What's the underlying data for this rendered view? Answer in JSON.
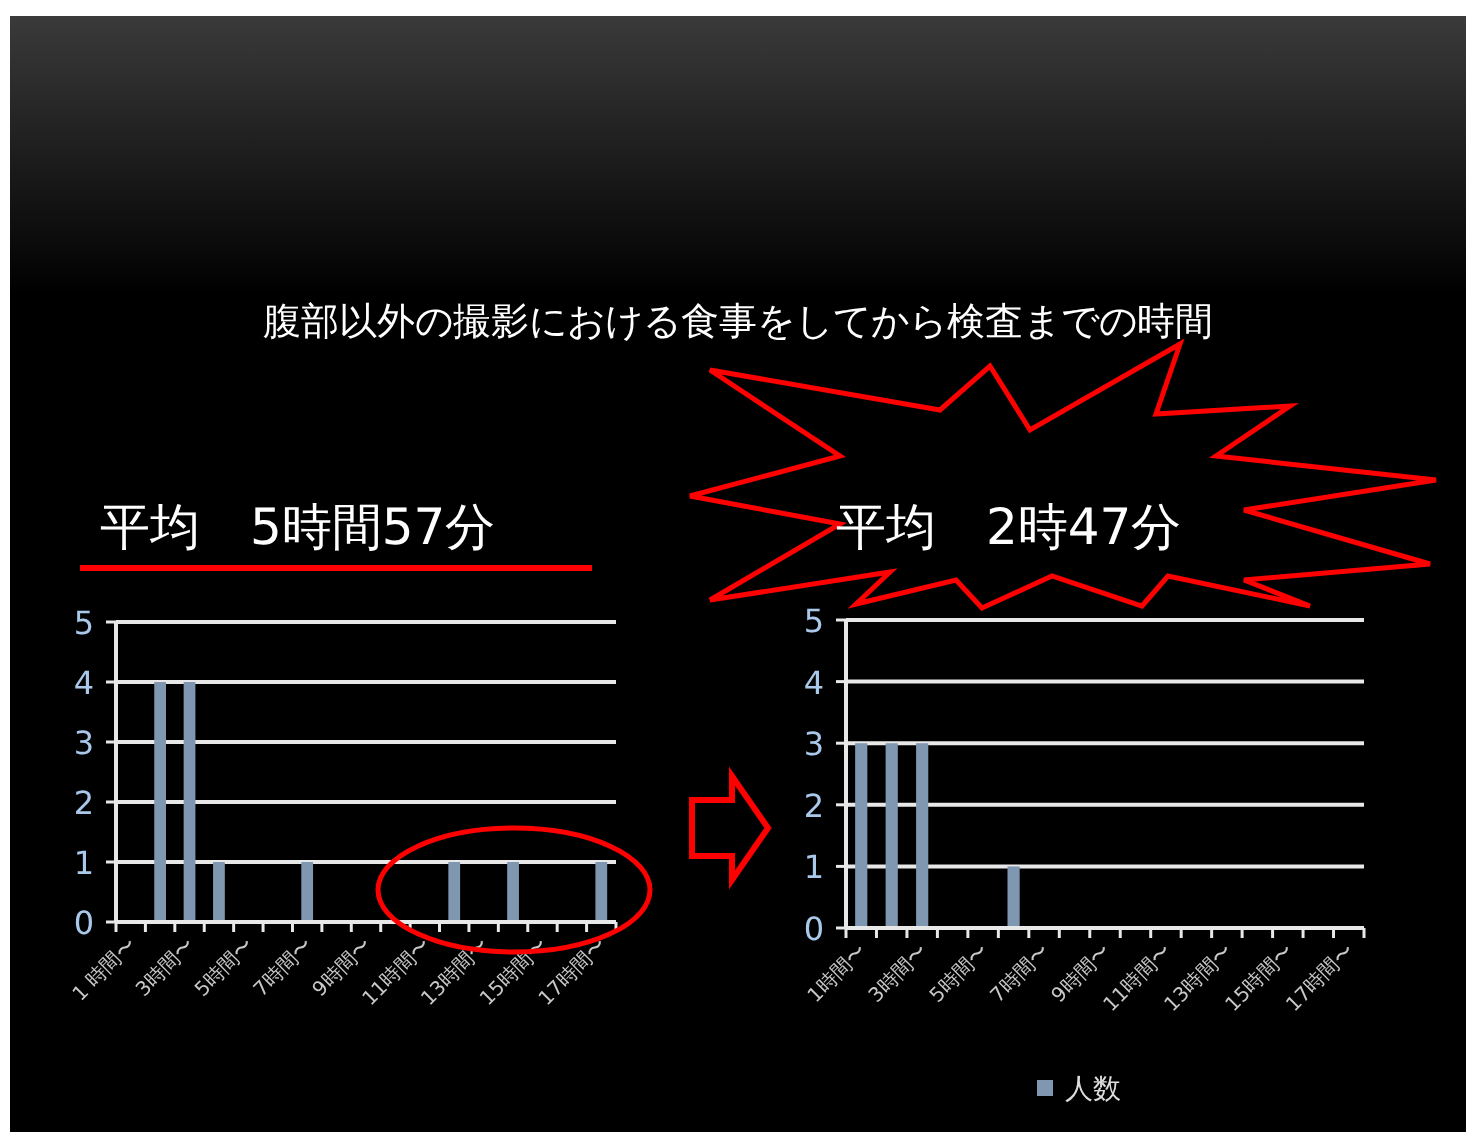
{
  "chart_data": [
    {
      "type": "bar",
      "title": "腹部以外の撮影における食事をしてから検査までの時間",
      "subtitle": "平均　5時間57分",
      "categories": [
        "1 時間〜",
        null,
        "3時間〜",
        null,
        "5時間〜",
        null,
        "7時間〜",
        null,
        "9時間〜",
        null,
        "11時間〜",
        null,
        "13時間〜",
        null,
        "15時間〜",
        null,
        "17時間〜"
      ],
      "series": [
        {
          "color": "#7f97b0",
          "values": [
            0,
            4,
            4,
            1,
            0,
            0,
            1,
            0,
            0,
            0,
            0,
            1,
            0,
            1,
            0,
            0,
            1
          ]
        }
      ],
      "ylim": [
        0,
        5
      ],
      "yticks": [
        0,
        1,
        2,
        3,
        4,
        5
      ],
      "grid": "y",
      "legend": false
    },
    {
      "type": "bar",
      "subtitle": "平均　2時47分",
      "categories": [
        "1時間〜",
        null,
        "3時間〜",
        null,
        "5時間〜",
        null,
        "7時間〜",
        null,
        "9時間〜",
        null,
        "11時間〜",
        null,
        "13時間〜",
        null,
        "15時間〜",
        null,
        "17時間〜"
      ],
      "series": [
        {
          "name": "人数",
          "color": "#7f97b0",
          "values": [
            3,
            3,
            3,
            0,
            0,
            1,
            0,
            0,
            0,
            0,
            0,
            0,
            0,
            0,
            0,
            0,
            0
          ]
        }
      ],
      "ylim": [
        0,
        5
      ],
      "yticks": [
        0,
        1,
        2,
        3,
        4,
        5
      ],
      "grid": "y",
      "legend": "bottom"
    }
  ]
}
